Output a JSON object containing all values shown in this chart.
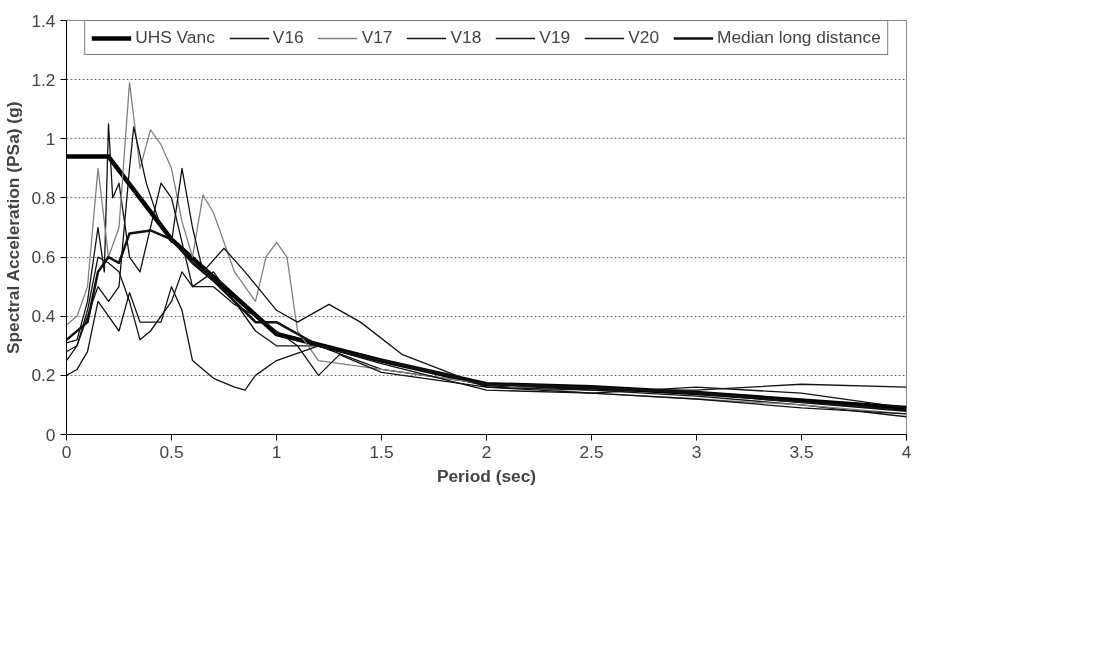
{
  "chart_data": {
    "type": "line",
    "xlabel": "Period (sec)",
    "ylabel": "Spectral Acceleration (PSa) (g)",
    "xlim": [
      0,
      4
    ],
    "ylim": [
      0,
      1.4
    ],
    "xticks": [
      0,
      0.5,
      1,
      1.5,
      2,
      2.5,
      3,
      3.5,
      4
    ],
    "yticks": [
      0,
      0.2,
      0.4,
      0.6,
      0.8,
      1,
      1.2,
      1.4
    ],
    "grid": "y",
    "legend": "top",
    "line_style": "solid",
    "marker": "none",
    "series": [
      {
        "name": "UHS Vanc",
        "color": "#000000",
        "x": [
          0,
          0.2,
          0.5,
          1.0,
          1.5,
          2.0,
          2.5,
          3.0,
          4.0
        ],
        "values": [
          0.94,
          0.94,
          0.66,
          0.34,
          0.25,
          0.17,
          0.16,
          0.14,
          0.09
        ]
      },
      {
        "name": "V16",
        "color": "#111111",
        "x": [
          0,
          0.05,
          0.1,
          0.15,
          0.18,
          0.2,
          0.22,
          0.25,
          0.3,
          0.35,
          0.4,
          0.45,
          0.5,
          0.55,
          0.6,
          0.7,
          0.8,
          0.9,
          1.0,
          1.2,
          1.5,
          2.0,
          2.5,
          3,
          3.5,
          4
        ],
        "values": [
          0.31,
          0.32,
          0.45,
          0.7,
          0.55,
          1.05,
          0.8,
          0.85,
          0.6,
          0.55,
          0.7,
          0.85,
          0.8,
          0.65,
          0.5,
          0.55,
          0.45,
          0.35,
          0.3,
          0.3,
          0.22,
          0.17,
          0.15,
          0.13,
          0.1,
          0.06
        ]
      },
      {
        "name": "V17",
        "color": "#808080",
        "x": [
          0,
          0.05,
          0.1,
          0.15,
          0.2,
          0.25,
          0.3,
          0.35,
          0.4,
          0.45,
          0.5,
          0.55,
          0.6,
          0.65,
          0.7,
          0.8,
          0.9,
          0.95,
          1.0,
          1.05,
          1.1,
          1.2,
          1.5,
          2.0,
          2.5,
          3.0,
          3.5,
          4.0
        ],
        "values": [
          0.37,
          0.4,
          0.5,
          0.9,
          0.6,
          0.7,
          1.19,
          0.9,
          1.03,
          0.98,
          0.9,
          0.72,
          0.6,
          0.81,
          0.75,
          0.55,
          0.45,
          0.6,
          0.65,
          0.6,
          0.35,
          0.25,
          0.22,
          0.17,
          0.14,
          0.12,
          0.1,
          0.07
        ]
      },
      {
        "name": "V18",
        "color": "#111111",
        "x": [
          0,
          0.05,
          0.1,
          0.15,
          0.2,
          0.25,
          0.3,
          0.32,
          0.38,
          0.45,
          0.5,
          0.55,
          0.6,
          0.65,
          0.75,
          0.85,
          1.0,
          1.1,
          1.25,
          1.4,
          1.6,
          2.0,
          2.5,
          3,
          3.5,
          4
        ],
        "values": [
          0.28,
          0.3,
          0.4,
          0.5,
          0.45,
          0.5,
          0.9,
          1.04,
          0.85,
          0.7,
          0.65,
          0.9,
          0.7,
          0.55,
          0.63,
          0.55,
          0.42,
          0.38,
          0.44,
          0.38,
          0.27,
          0.16,
          0.15,
          0.15,
          0.17,
          0.16
        ]
      },
      {
        "name": "V19",
        "color": "#111111",
        "x": [
          0,
          0.05,
          0.1,
          0.15,
          0.2,
          0.25,
          0.3,
          0.35,
          0.45,
          0.5,
          0.55,
          0.6,
          0.7,
          0.8,
          0.85,
          0.9,
          1.0,
          1.2,
          1.5,
          2,
          2.5,
          3,
          3.5,
          4
        ],
        "values": [
          0.2,
          0.22,
          0.28,
          0.45,
          0.4,
          0.35,
          0.48,
          0.38,
          0.38,
          0.5,
          0.42,
          0.25,
          0.19,
          0.16,
          0.15,
          0.2,
          0.25,
          0.3,
          0.24,
          0.15,
          0.14,
          0.16,
          0.14,
          0.09
        ]
      },
      {
        "name": "V20",
        "color": "#111111",
        "x": [
          0,
          0.05,
          0.1,
          0.15,
          0.2,
          0.25,
          0.3,
          0.35,
          0.4,
          0.5,
          0.55,
          0.6,
          0.7,
          0.8,
          0.9,
          1.0,
          1.1,
          1.2,
          1.3,
          1.5,
          2,
          2.5,
          3,
          3.5,
          4
        ],
        "values": [
          0.25,
          0.3,
          0.42,
          0.6,
          0.58,
          0.55,
          0.45,
          0.32,
          0.35,
          0.45,
          0.55,
          0.5,
          0.5,
          0.44,
          0.4,
          0.35,
          0.3,
          0.2,
          0.27,
          0.21,
          0.16,
          0.14,
          0.12,
          0.09,
          0.07
        ]
      },
      {
        "name": "Median long distance",
        "color": "#111111",
        "x": [
          0,
          0.1,
          0.15,
          0.2,
          0.25,
          0.3,
          0.4,
          0.5,
          0.6,
          0.7,
          0.8,
          0.9,
          1.0,
          1.2,
          1.5,
          2.0,
          2.5,
          3,
          3.5,
          4
        ],
        "values": [
          0.32,
          0.38,
          0.55,
          0.6,
          0.58,
          0.68,
          0.69,
          0.66,
          0.58,
          0.52,
          0.45,
          0.38,
          0.38,
          0.3,
          0.25,
          0.17,
          0.16,
          0.14,
          0.11,
          0.08
        ]
      }
    ]
  }
}
